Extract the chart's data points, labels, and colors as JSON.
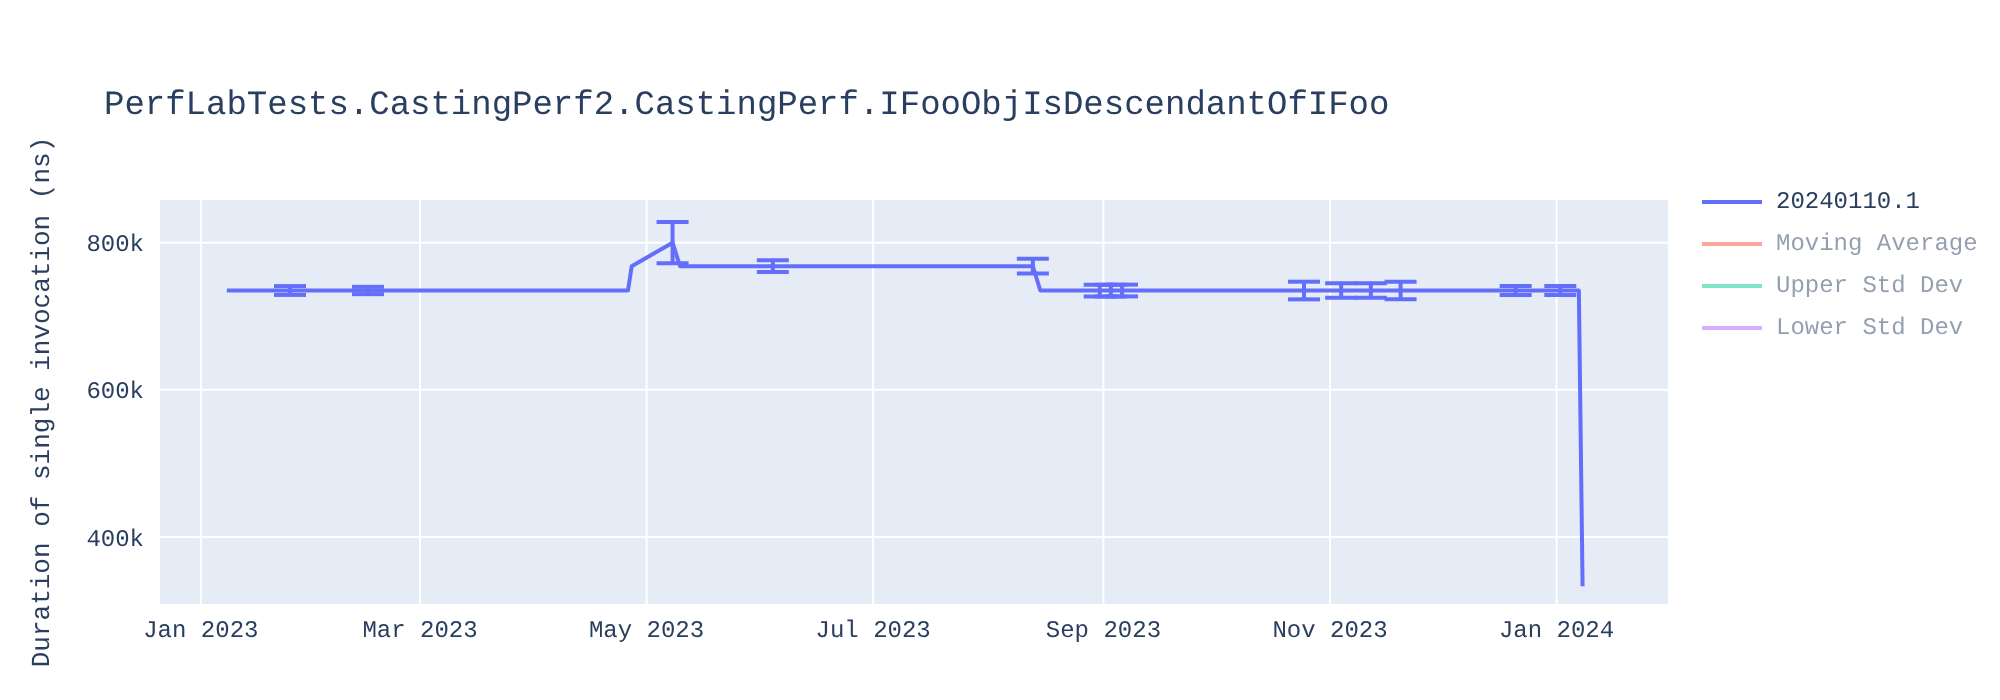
{
  "chart_data": {
    "type": "line",
    "title": "PerfLabTests.CastingPerf2.CastingPerf.IFooObjIsDescendantOfIFoo",
    "ylabel": "Duration of single invocation (ns)",
    "x": [
      "2023-01-08",
      "2023-01-25",
      "2023-02-15",
      "2023-04-20",
      "2023-04-26",
      "2023-04-27",
      "2023-05-08",
      "2023-05-10",
      "2023-05-15",
      "2023-06-04",
      "2023-08-13",
      "2023-08-15",
      "2023-08-31",
      "2023-09-03",
      "2023-09-06",
      "2023-10-25",
      "2023-11-04",
      "2023-11-12",
      "2023-11-20",
      "2023-12-21",
      "2024-01-02",
      "2024-01-07",
      "2024-01-08"
    ],
    "series": [
      {
        "name": "20240110.1",
        "color": "#636efa",
        "values": [
          735000,
          735000,
          735000,
          735000,
          735000,
          768000,
          800000,
          768000,
          768000,
          768000,
          768000,
          735000,
          735000,
          735000,
          735000,
          735000,
          735000,
          735000,
          735000,
          735000,
          735000,
          735000,
          333000
        ],
        "errors": [
          null,
          6000,
          5000,
          null,
          null,
          null,
          28000,
          null,
          null,
          8000,
          10000,
          null,
          8000,
          8000,
          8000,
          12000,
          10000,
          10000,
          12000,
          6000,
          6000,
          null,
          null
        ]
      },
      {
        "name": "Moving Average",
        "color": "#ef553b",
        "values": [
          null,
          null,
          null,
          null,
          null,
          null,
          null,
          null,
          null,
          null,
          null,
          null,
          null,
          null,
          null,
          null,
          null,
          null,
          null,
          null,
          null,
          null,
          null
        ]
      },
      {
        "name": "Upper Std Dev",
        "color": "#00cc96",
        "values": [
          null,
          null,
          null,
          null,
          null,
          null,
          null,
          null,
          null,
          null,
          null,
          null,
          null,
          null,
          null,
          null,
          null,
          null,
          null,
          null,
          null,
          null,
          null
        ]
      },
      {
        "name": "Lower Std Dev",
        "color": "#ab63fa",
        "values": [
          null,
          null,
          null,
          null,
          null,
          null,
          null,
          null,
          null,
          null,
          null,
          null,
          null,
          null,
          null,
          null,
          null,
          null,
          null,
          null,
          null,
          null,
          null
        ]
      }
    ],
    "xlim": [
      "2022-12-21",
      "2024-01-31"
    ],
    "xticks": [
      {
        "value": "2023-01-01",
        "label": "Jan 2023"
      },
      {
        "value": "2023-03-01",
        "label": "Mar 2023"
      },
      {
        "value": "2023-05-01",
        "label": "May 2023"
      },
      {
        "value": "2023-07-01",
        "label": "Jul 2023"
      },
      {
        "value": "2023-09-01",
        "label": "Sep 2023"
      },
      {
        "value": "2023-11-01",
        "label": "Nov 2023"
      },
      {
        "value": "2024-01-01",
        "label": "Jan 2024"
      }
    ],
    "ylim": [
      309000,
      858000
    ],
    "yticks": [
      {
        "value": 400000,
        "label": "400k"
      },
      {
        "value": 600000,
        "label": "600k"
      },
      {
        "value": 800000,
        "label": "800k"
      }
    ],
    "grid": true,
    "legend": "top right",
    "marker": "none",
    "line_style": "solid"
  }
}
